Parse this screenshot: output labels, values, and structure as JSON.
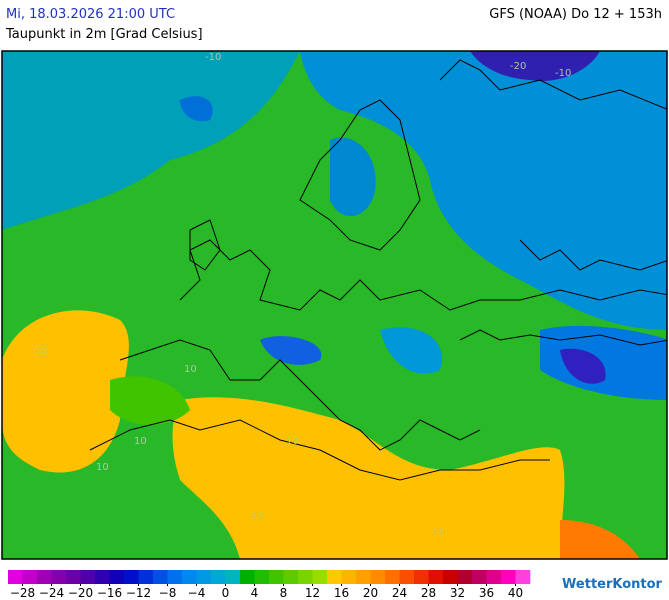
{
  "header": {
    "datetime": "Mi, 18.03.2026 21:00 UTC",
    "parameter": "Taupunkt in 2m [Grad Celsius]",
    "model": "GFS (NOAA) Do 12 + 153h"
  },
  "map": {
    "contour_labels": [
      "-10",
      "-20",
      "-10",
      "10",
      "10",
      "10",
      "10",
      "10",
      "10",
      "10"
    ]
  },
  "colorbar": {
    "lim": [
      -30,
      42
    ],
    "colors": [
      "#e000e0",
      "#c000c8",
      "#a000b4",
      "#8400a8",
      "#6c00a4",
      "#5000a8",
      "#3000b0",
      "#1000b8",
      "#0010c8",
      "#0030d8",
      "#0050e4",
      "#0070ec",
      "#0088ec",
      "#0098e0",
      "#00a8d8",
      "#00b4c0",
      "#00b000",
      "#20bc00",
      "#40c400",
      "#5ccc00",
      "#78d400",
      "#98dc00",
      "#ffc800",
      "#ffb400",
      "#ffa000",
      "#ff8c00",
      "#ff7000",
      "#f85000",
      "#f03000",
      "#e01000",
      "#c80000",
      "#b00030",
      "#c00060",
      "#e00090",
      "#ff00c0",
      "#ff40e0"
    ],
    "ticks": [
      {
        "value": -28,
        "label": "−28"
      },
      {
        "value": -24,
        "label": "−24"
      },
      {
        "value": -20,
        "label": "−20"
      },
      {
        "value": -16,
        "label": "−16"
      },
      {
        "value": -12,
        "label": "−12"
      },
      {
        "value": -8,
        "label": "−8"
      },
      {
        "value": -4,
        "label": "−4"
      },
      0,
      4,
      8,
      12,
      16,
      20,
      24,
      28,
      32,
      36,
      40
    ]
  },
  "logo": "WetterKontor"
}
